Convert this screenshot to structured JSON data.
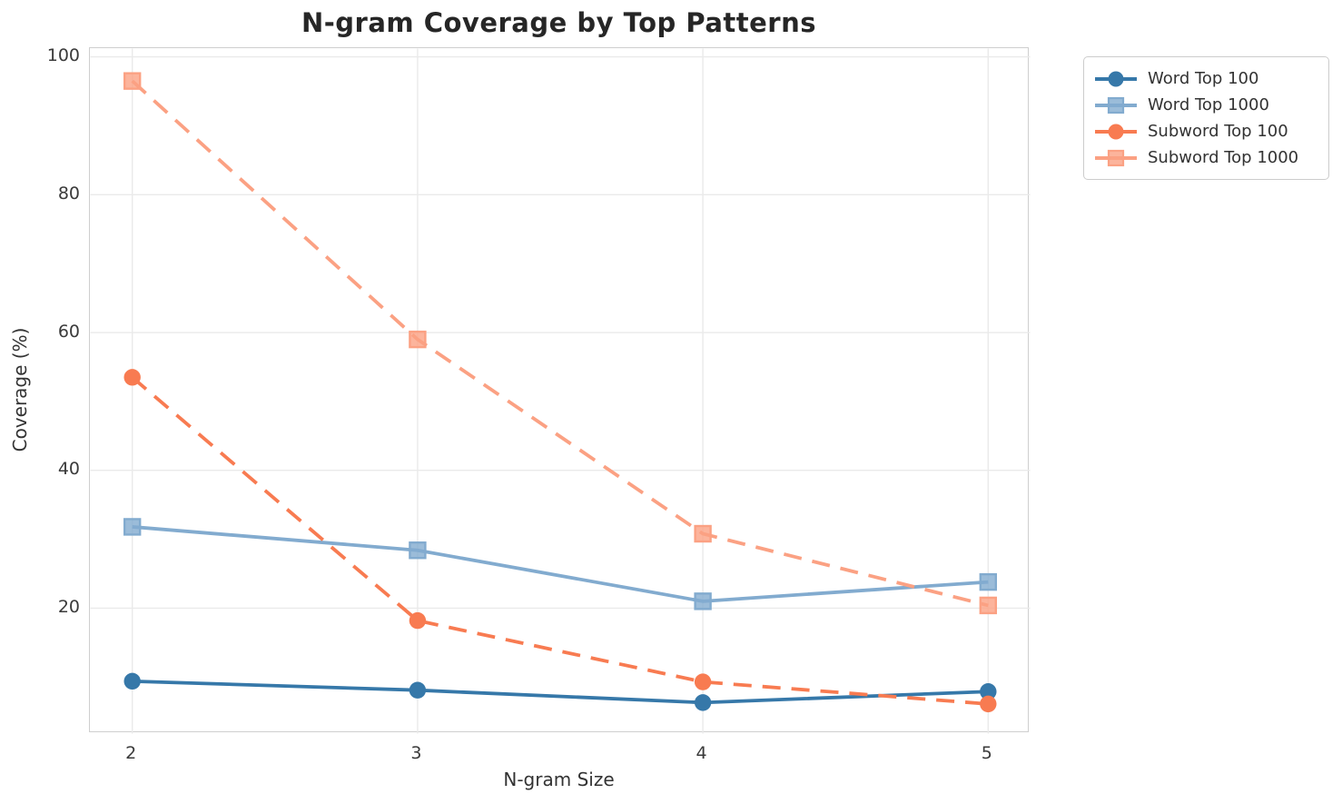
{
  "chart_data": {
    "type": "line",
    "title": "N-gram Coverage by Top Patterns",
    "xlabel": "N-gram Size",
    "ylabel": "Coverage (%)",
    "x": [
      2,
      3,
      4,
      5
    ],
    "series": [
      {
        "name": "Word Top 100",
        "values": [
          9.4,
          8.1,
          6.3,
          7.9
        ],
        "color": "#3678a9",
        "marker": "circle",
        "line_style": "solid"
      },
      {
        "name": "Word Top 1000",
        "values": [
          31.8,
          28.4,
          21.0,
          23.8
        ],
        "color": "#82abcf",
        "marker": "square",
        "line_style": "solid"
      },
      {
        "name": "Subword Top 100",
        "values": [
          53.5,
          18.2,
          9.3,
          6.1
        ],
        "color": "#f87b51",
        "marker": "circle",
        "line_style": "dashed"
      },
      {
        "name": "Subword Top 1000",
        "values": [
          96.5,
          59.0,
          30.8,
          20.4
        ],
        "color": "#fba183",
        "marker": "square",
        "line_style": "dashed"
      }
    ],
    "xticks": [
      2,
      3,
      4,
      5
    ],
    "yticks": [
      20,
      40,
      60,
      80,
      100
    ],
    "xlim": [
      1.853,
      5.147
    ],
    "ylim": [
      1.8,
      101.2
    ],
    "grid": true,
    "legend_position": "outside-upper-right"
  },
  "style": {
    "background": "#ffffff",
    "grid_color": "#eaeaea",
    "spine_color": "#cfcfcf",
    "tick_text_color": "#3a3a3a",
    "title_color": "#262626"
  }
}
